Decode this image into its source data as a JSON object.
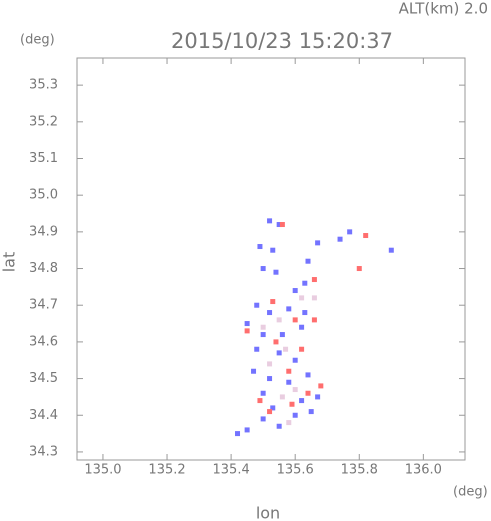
{
  "chart_data": {
    "type": "scatter",
    "title": "2015/10/23 15:20:37",
    "annotation": "ALT(km) 2.0",
    "x_label": "lon",
    "y_label": "lat",
    "x_unit": "(deg)",
    "y_unit": "(deg)",
    "xlim": [
      134.919,
      136.13
    ],
    "ylim": [
      34.278,
      35.374
    ],
    "xticks": [
      {
        "value": 135,
        "label": "135.0"
      },
      135.2,
      135.4,
      135.6,
      135.8,
      {
        "value": 136,
        "label": "136.0"
      }
    ],
    "yticks": [
      34.3,
      34.4,
      34.5,
      34.6,
      34.7,
      34.8,
      34.9,
      {
        "value": 35,
        "label": "35.0"
      },
      35.1,
      35.2,
      35.3
    ],
    "series": [
      {
        "color": "#7373ff",
        "x": [
          135.52,
          135.55,
          135.49,
          135.53,
          135.5,
          135.54,
          135.67,
          135.64,
          135.63,
          135.6,
          135.48,
          135.52,
          135.58,
          135.63,
          135.45,
          135.5,
          135.56,
          135.62,
          135.48,
          135.55,
          135.6,
          135.47,
          135.52,
          135.58,
          135.64,
          135.5,
          135.62,
          135.67,
          135.53,
          135.6,
          135.65,
          135.5,
          135.45,
          135.42,
          135.55,
          135.74,
          135.9,
          135.77
        ],
        "y": [
          34.93,
          34.92,
          34.86,
          34.85,
          34.8,
          34.79,
          34.87,
          34.82,
          34.76,
          34.74,
          34.7,
          34.68,
          34.69,
          34.68,
          34.65,
          34.62,
          34.62,
          34.64,
          34.58,
          34.57,
          34.55,
          34.52,
          34.5,
          34.49,
          34.51,
          34.46,
          34.44,
          34.45,
          34.42,
          34.4,
          34.41,
          34.39,
          34.36,
          34.35,
          34.37,
          34.88,
          34.85,
          34.9
        ]
      },
      {
        "color": "#ff6e6e",
        "x": [
          135.56,
          135.66,
          135.8,
          135.53,
          135.6,
          135.66,
          135.45,
          135.54,
          135.62,
          135.58,
          135.68,
          135.64,
          135.59,
          135.52,
          135.49,
          135.82
        ],
        "y": [
          34.92,
          34.77,
          34.8,
          34.71,
          34.66,
          34.66,
          34.63,
          34.6,
          34.58,
          34.52,
          34.48,
          34.46,
          34.43,
          34.41,
          34.44,
          34.89
        ]
      },
      {
        "color": "#e9cde0",
        "x": [
          135.55,
          135.5,
          135.57,
          135.52,
          135.6,
          135.56,
          135.58,
          135.62,
          135.66
        ],
        "y": [
          34.66,
          34.64,
          34.58,
          34.54,
          34.47,
          34.45,
          34.38,
          34.72,
          34.72
        ]
      }
    ]
  }
}
